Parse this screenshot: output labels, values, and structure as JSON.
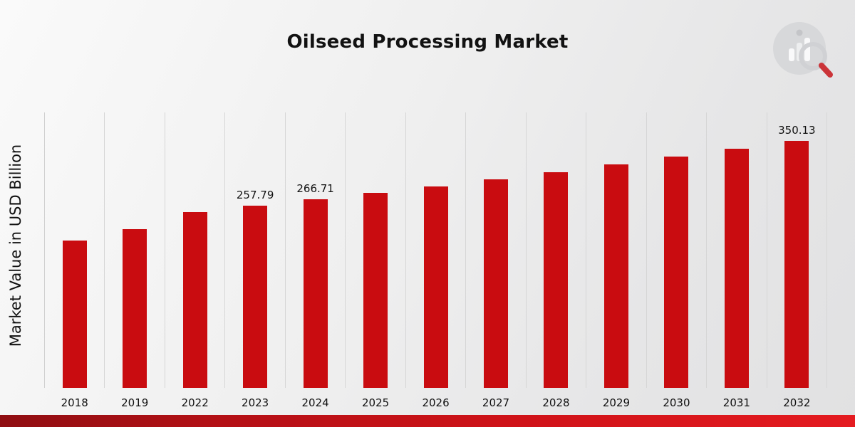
{
  "title": "Oilseed Processing Market",
  "ylabel": "Market Value in USD Billion",
  "logo_icon": "bar-chart-magnifier-icon",
  "chart_data": {
    "type": "bar",
    "title": "Oilseed Processing Market",
    "xlabel": "",
    "ylabel": "Market Value in USD Billion",
    "categories": [
      "2018",
      "2019",
      "2022",
      "2023",
      "2024",
      "2025",
      "2026",
      "2027",
      "2028",
      "2029",
      "2030",
      "2031",
      "2032"
    ],
    "values": [
      208.5,
      224.3,
      248.6,
      257.79,
      266.71,
      275.9,
      285.5,
      295.4,
      305.6,
      316.2,
      327.1,
      338.4,
      350.13
    ],
    "data_labels": [
      "",
      "",
      "",
      "257.79",
      "266.71",
      "",
      "",
      "",
      "",
      "",
      "",
      "",
      "350.13"
    ],
    "bar_color": "#c90c10",
    "grid": "vertical-only",
    "legend": "none",
    "ylim": [
      0,
      390
    ]
  }
}
